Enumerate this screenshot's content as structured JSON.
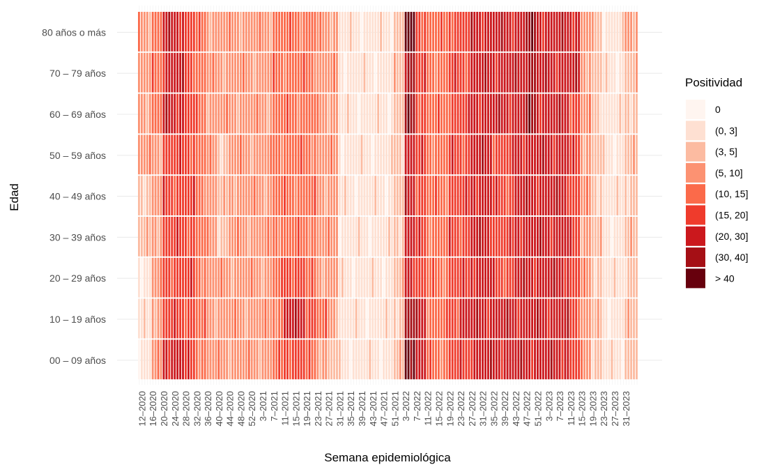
{
  "chart_data": {
    "type": "heatmap",
    "xlabel": "Semana epidemiológica",
    "ylabel": "Edad",
    "legend": {
      "title": "Positividad",
      "placement": "right",
      "bins": [
        {
          "label": "0",
          "color": "#fff5f0"
        },
        {
          "label": "(0, 3]",
          "color": "#fee0d2"
        },
        {
          "label": "(3, 5]",
          "color": "#fcbba1"
        },
        {
          "label": "(5, 10]",
          "color": "#fc9272"
        },
        {
          "label": "(10, 15]",
          "color": "#fb6a4a"
        },
        {
          "label": "(15, 20]",
          "color": "#ef3b2c"
        },
        {
          "label": "(20, 30]",
          "color": "#cb181d"
        },
        {
          "label": "(30, 40]",
          "color": "#a50f15"
        },
        {
          "label": "> 40",
          "color": "#67000d"
        }
      ]
    },
    "rows": [
      "00 – 09 años",
      "10 – 19 años",
      "20 – 29 años",
      "30 – 39 años",
      "40 – 49 años",
      "50 – 59 años",
      "60 – 69 años",
      "70 – 79 años",
      "80 años o más"
    ],
    "x_ticks": [
      "12–2020",
      "16–2020",
      "20–2020",
      "24–2020",
      "28–2020",
      "32–2020",
      "36–2020",
      "40–2020",
      "44–2020",
      "48–2020",
      "52–2020",
      "3–2021",
      "7–2021",
      "11–2021",
      "15–2021",
      "19–2021",
      "23–2021",
      "27–2021",
      "31–2021",
      "35–2021",
      "39–2021",
      "43–2021",
      "47–2021",
      "51–2021",
      "3–2022",
      "7–2022",
      "11–2022",
      "15–2022",
      "19–2022",
      "23–2022",
      "27–2022",
      "31–2022",
      "35–2022",
      "39–2022",
      "43–2022",
      "47–2022",
      "51–2022",
      "3–2023",
      "7–2023",
      "11–2023",
      "15–2023",
      "19–2023",
      "23–2023",
      "27–2023",
      "31–2023"
    ],
    "weeks_per_tick": 4,
    "extra_leading_weeks": 1,
    "extra_trailing_weeks": 1,
    "intensity_profile": {
      "note": "approximate positivity bin index (0-8) by tick segment and age group (rows bottom to top)",
      "segments": [
        [
          1,
          1,
          1,
          2,
          2,
          3,
          3,
          3,
          3
        ],
        [
          3,
          3,
          3,
          3,
          3,
          3,
          4,
          4,
          4
        ],
        [
          6,
          5,
          5,
          5,
          5,
          5,
          6,
          6,
          6
        ],
        [
          6,
          5,
          5,
          5,
          5,
          5,
          6,
          6,
          6
        ],
        [
          5,
          5,
          5,
          5,
          5,
          5,
          5,
          5,
          5
        ],
        [
          4,
          4,
          4,
          4,
          4,
          4,
          4,
          4,
          4
        ],
        [
          3,
          3,
          3,
          3,
          3,
          3,
          3,
          3,
          3
        ],
        [
          3,
          3,
          3,
          2,
          2,
          2,
          3,
          3,
          3
        ],
        [
          3,
          3,
          3,
          3,
          3,
          3,
          3,
          3,
          3
        ],
        [
          3,
          3,
          3,
          3,
          3,
          3,
          3,
          3,
          3
        ],
        [
          3,
          3,
          3,
          3,
          3,
          3,
          3,
          3,
          3
        ],
        [
          3,
          3,
          3,
          3,
          3,
          3,
          3,
          3,
          3
        ],
        [
          4,
          4,
          4,
          4,
          4,
          4,
          4,
          4,
          4
        ],
        [
          5,
          6,
          5,
          4,
          4,
          4,
          4,
          4,
          4
        ],
        [
          5,
          6,
          5,
          4,
          4,
          4,
          4,
          4,
          4
        ],
        [
          4,
          5,
          4,
          4,
          4,
          4,
          4,
          4,
          4
        ],
        [
          3,
          4,
          3,
          3,
          3,
          3,
          3,
          3,
          3
        ],
        [
          2,
          3,
          3,
          3,
          3,
          3,
          3,
          3,
          3
        ],
        [
          1,
          1,
          1,
          1,
          1,
          1,
          1,
          1,
          1
        ],
        [
          1,
          1,
          1,
          1,
          1,
          1,
          1,
          1,
          1
        ],
        [
          1,
          1,
          1,
          1,
          1,
          1,
          1,
          1,
          1
        ],
        [
          1,
          1,
          1,
          1,
          1,
          1,
          1,
          1,
          1
        ],
        [
          1,
          1,
          1,
          1,
          1,
          1,
          1,
          1,
          1
        ],
        [
          2,
          2,
          2,
          2,
          2,
          2,
          2,
          2,
          2
        ],
        [
          8,
          7,
          6,
          6,
          6,
          6,
          7,
          7,
          8
        ],
        [
          6,
          6,
          5,
          5,
          5,
          5,
          5,
          5,
          5
        ],
        [
          4,
          4,
          4,
          4,
          4,
          4,
          4,
          4,
          4
        ],
        [
          4,
          4,
          4,
          4,
          4,
          4,
          4,
          4,
          4
        ],
        [
          5,
          5,
          5,
          5,
          5,
          5,
          5,
          5,
          5
        ],
        [
          5,
          6,
          5,
          5,
          5,
          5,
          5,
          5,
          5
        ],
        [
          6,
          6,
          6,
          6,
          6,
          6,
          6,
          6,
          6
        ],
        [
          6,
          6,
          6,
          6,
          6,
          6,
          6,
          6,
          6
        ],
        [
          6,
          6,
          5,
          5,
          5,
          5,
          6,
          6,
          6
        ],
        [
          6,
          6,
          5,
          5,
          5,
          5,
          6,
          6,
          6
        ],
        [
          6,
          6,
          6,
          6,
          6,
          6,
          6,
          6,
          6
        ],
        [
          6,
          6,
          6,
          6,
          6,
          6,
          7,
          7,
          7
        ],
        [
          6,
          6,
          6,
          6,
          6,
          6,
          6,
          6,
          6
        ],
        [
          6,
          6,
          6,
          6,
          6,
          6,
          6,
          6,
          6
        ],
        [
          6,
          6,
          6,
          6,
          6,
          6,
          6,
          6,
          6
        ],
        [
          5,
          5,
          5,
          5,
          5,
          5,
          5,
          6,
          6
        ],
        [
          3,
          3,
          3,
          3,
          3,
          3,
          3,
          3,
          3
        ],
        [
          2,
          2,
          2,
          2,
          2,
          2,
          2,
          2,
          2
        ],
        [
          1,
          1,
          1,
          1,
          1,
          1,
          1,
          1,
          1
        ],
        [
          1,
          1,
          1,
          1,
          1,
          1,
          1,
          1,
          1
        ],
        [
          2,
          2,
          2,
          2,
          2,
          2,
          2,
          2,
          3
        ]
      ]
    }
  }
}
